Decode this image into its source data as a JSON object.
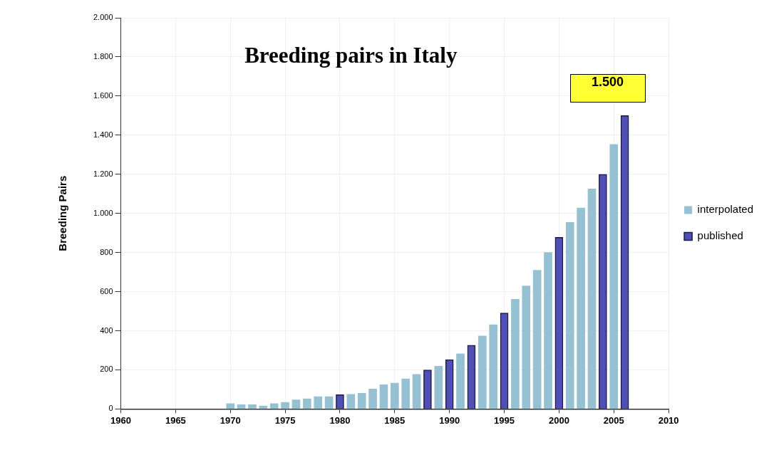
{
  "chart_data": {
    "type": "bar",
    "title": "Breeding pairs in Italy",
    "ylabel": "Breeding Pairs",
    "x": [
      1970,
      1971,
      1972,
      1973,
      1974,
      1975,
      1976,
      1977,
      1978,
      1979,
      1980,
      1981,
      1982,
      1983,
      1984,
      1985,
      1986,
      1987,
      1988,
      1989,
      1990,
      1991,
      1992,
      1993,
      1994,
      1995,
      1996,
      1997,
      1998,
      1999,
      2000,
      2001,
      2002,
      2003,
      2004,
      2005,
      2006
    ],
    "series": [
      {
        "name": "interpolated",
        "color": "#95c1d3",
        "values": [
          28,
          22,
          22,
          16,
          28,
          34,
          47,
          52,
          63,
          63,
          null,
          75,
          80,
          102,
          124,
          132,
          154,
          177,
          null,
          219,
          null,
          282,
          null,
          373,
          431,
          null,
          561,
          629,
          709,
          800,
          null,
          954,
          1028,
          1125,
          null,
          1353,
          null
        ]
      },
      {
        "name": "published",
        "color": "#4f4fb5",
        "values": [
          null,
          null,
          null,
          null,
          null,
          null,
          null,
          null,
          null,
          null,
          73,
          null,
          null,
          null,
          null,
          null,
          null,
          null,
          200,
          null,
          252,
          null,
          326,
          null,
          null,
          491,
          null,
          null,
          null,
          null,
          878,
          null,
          null,
          null,
          1200,
          null,
          1500
        ]
      }
    ],
    "xlim": [
      1960,
      2010
    ],
    "xticks": [
      1960,
      1965,
      1970,
      1975,
      1980,
      1985,
      1990,
      1995,
      2000,
      2005,
      2010
    ],
    "ylim": [
      0,
      2000
    ],
    "yticks": [
      0,
      200,
      400,
      600,
      800,
      {
        "value": 1000,
        "label": "1.000"
      },
      {
        "value": 1200,
        "label": "1.200"
      },
      {
        "value": 1400,
        "label": "1.400"
      },
      {
        "value": 1600,
        "label": "1.600"
      },
      {
        "value": 1800,
        "label": "1.800"
      },
      {
        "value": 2000,
        "label": "2.000"
      }
    ],
    "annotations": [
      {
        "text": "1.500",
        "x": 2006,
        "y": 1500
      }
    ],
    "grid": true,
    "legend": "right"
  }
}
